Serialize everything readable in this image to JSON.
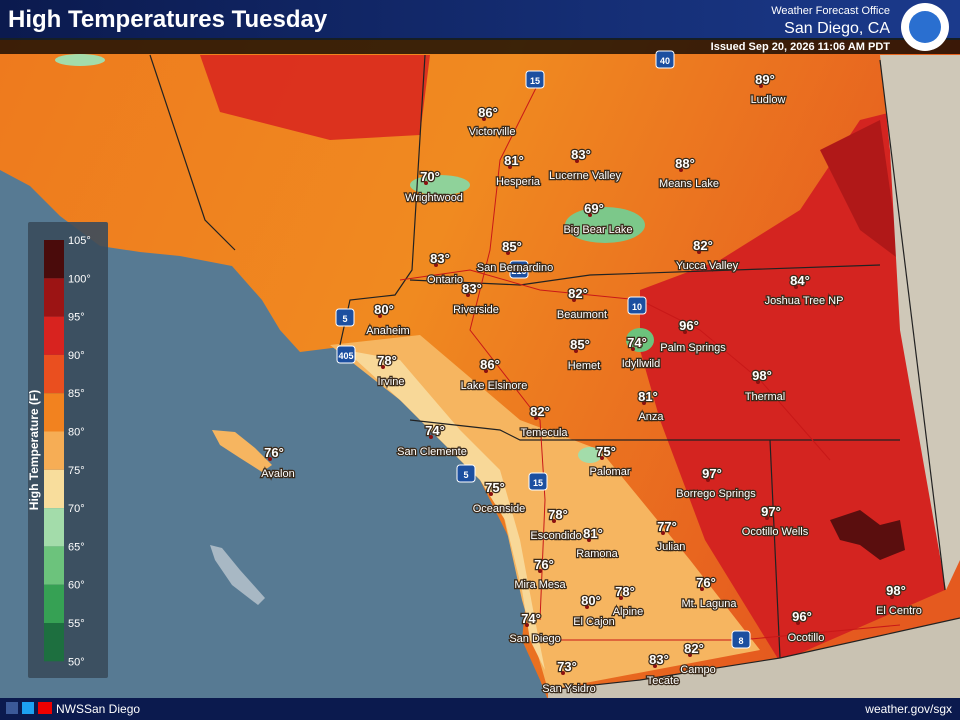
{
  "header": {
    "title": "High Temperatures Tuesday",
    "office": "Weather Forecast Office",
    "location": "San Diego, CA",
    "issued": "Issued Sep 20, 2026 11:06 AM PDT"
  },
  "legend": {
    "title": "High Temperature (F)",
    "ticks": [
      "105°",
      "100°",
      "95°",
      "90°",
      "85°",
      "80°",
      "75°",
      "70°",
      "65°",
      "60°",
      "55°",
      "50°"
    ],
    "colors": [
      "#4a0b0b",
      "#9c1414",
      "#d8231f",
      "#ea4f1f",
      "#f2821f",
      "#f6ad55",
      "#f8dd9c",
      "#a3dcaa",
      "#6cc37c",
      "#36a154",
      "#1d6f3f"
    ]
  },
  "cities": [
    {
      "name": "Ludlow",
      "temp": "89°"
    },
    {
      "name": "Victorville",
      "temp": "86°"
    },
    {
      "name": "Hesperia",
      "temp": "81°"
    },
    {
      "name": "Lucerne Valley",
      "temp": "83°"
    },
    {
      "name": "Means Lake",
      "temp": "88°"
    },
    {
      "name": "Wrightwood",
      "temp": "70°"
    },
    {
      "name": "Big Bear Lake",
      "temp": "69°"
    },
    {
      "name": "Yucca Valley",
      "temp": "82°"
    },
    {
      "name": "Ontario",
      "temp": "83°"
    },
    {
      "name": "San Bernardino",
      "temp": "85°"
    },
    {
      "name": "Joshua Tree NP",
      "temp": "84°"
    },
    {
      "name": "Riverside",
      "temp": "83°"
    },
    {
      "name": "Beaumont",
      "temp": "82°"
    },
    {
      "name": "Anaheim",
      "temp": "80°"
    },
    {
      "name": "Palm Springs",
      "temp": "96°"
    },
    {
      "name": "Hemet",
      "temp": "85°"
    },
    {
      "name": "Idyllwild",
      "temp": "74°"
    },
    {
      "name": "Irvine",
      "temp": "78°"
    },
    {
      "name": "Lake Elsinore",
      "temp": "86°"
    },
    {
      "name": "Thermal",
      "temp": "98°"
    },
    {
      "name": "Anza",
      "temp": "81°"
    },
    {
      "name": "Temecula",
      "temp": "82°"
    },
    {
      "name": "San Clemente",
      "temp": "74°"
    },
    {
      "name": "Avalon",
      "temp": "76°"
    },
    {
      "name": "Palomar",
      "temp": "75°"
    },
    {
      "name": "Borrego Springs",
      "temp": "97°"
    },
    {
      "name": "Oceanside",
      "temp": "75°"
    },
    {
      "name": "Escondido",
      "temp": "78°"
    },
    {
      "name": "Ramona",
      "temp": "81°"
    },
    {
      "name": "Julian",
      "temp": "77°"
    },
    {
      "name": "Ocotillo Wells",
      "temp": "97°"
    },
    {
      "name": "Mira Mesa",
      "temp": "76°"
    },
    {
      "name": "Alpine",
      "temp": "78°"
    },
    {
      "name": "El Cajon",
      "temp": "80°"
    },
    {
      "name": "Mt. Laguna",
      "temp": "76°"
    },
    {
      "name": "El Centro",
      "temp": "98°"
    },
    {
      "name": "Ocotillo",
      "temp": "96°"
    },
    {
      "name": "San Diego",
      "temp": "74°"
    },
    {
      "name": "Campo",
      "temp": "82°"
    },
    {
      "name": "Tecate",
      "temp": "83°"
    },
    {
      "name": "San Ysidro",
      "temp": "73°"
    }
  ],
  "highways": [
    "15",
    "40",
    "5",
    "405",
    "215",
    "10",
    "5",
    "15",
    "8"
  ],
  "footer": {
    "social": "NWSSan Diego",
    "url": "weather.gov/sgx"
  }
}
